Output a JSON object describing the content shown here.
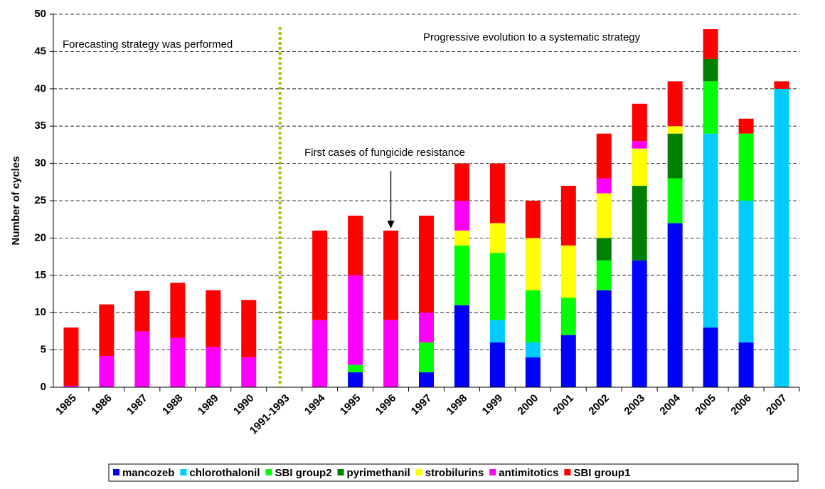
{
  "chart_data": {
    "type": "stacked-bar",
    "y_label": "Number of cycles",
    "categories": [
      "1985",
      "1986",
      "1987",
      "1988",
      "1989",
      "1990",
      "1991-1993",
      "1994",
      "1995",
      "1996",
      "1997",
      "1998",
      "1999",
      "2000",
      "2001",
      "2002",
      "2003",
      "2004",
      "2005",
      "2006",
      "2007"
    ],
    "series": [
      {
        "name": "mancozeb",
        "color": "#0000ff",
        "values": [
          0,
          0,
          0,
          0,
          0,
          0,
          0,
          0,
          2,
          0,
          2,
          11,
          6,
          4,
          7,
          13,
          17,
          22,
          8,
          6,
          0
        ]
      },
      {
        "name": "chlorothalonil",
        "color": "#00ccff",
        "values": [
          0,
          0,
          0,
          0,
          0,
          0,
          0,
          0,
          0,
          0,
          0,
          0,
          3,
          2,
          0,
          0,
          0,
          0,
          26,
          19,
          40
        ]
      },
      {
        "name": "SBI group2",
        "color": "#00ff00",
        "values": [
          0,
          0,
          0,
          0,
          0,
          0,
          0,
          0,
          1,
          0,
          4,
          8,
          9,
          7,
          5,
          4,
          0,
          6,
          7,
          9,
          0
        ]
      },
      {
        "name": "pyrimethanil",
        "color": "#008000",
        "values": [
          0,
          0,
          0,
          0,
          0,
          0,
          0,
          0,
          0,
          0,
          0,
          0,
          0,
          0,
          0,
          3,
          10,
          6,
          3,
          0,
          0
        ]
      },
      {
        "name": "strobilurins",
        "color": "#ffff00",
        "values": [
          0,
          0,
          0,
          0,
          0,
          0,
          0,
          0,
          0,
          0,
          0,
          2,
          4,
          7,
          7,
          6,
          5,
          1,
          0,
          0,
          0
        ]
      },
      {
        "name": "antimitotics",
        "color": "#ff00ff",
        "values": [
          0.2,
          4.2,
          7.5,
          6.6,
          5.4,
          4,
          0,
          9,
          12,
          9,
          4,
          4,
          0,
          0,
          0,
          2,
          1,
          0,
          0,
          0,
          0
        ]
      },
      {
        "name": "SBI group1",
        "color": "#ff0000",
        "values": [
          7.8,
          6.9,
          5.4,
          7.4,
          7.6,
          7.7,
          0,
          12,
          8,
          12,
          13,
          5,
          8,
          5,
          8,
          6,
          5,
          6,
          4,
          2,
          1
        ]
      }
    ],
    "ylim": [
      0,
      50
    ],
    "yticks": [
      0,
      5,
      10,
      15,
      20,
      25,
      30,
      35,
      40,
      45,
      50
    ],
    "grid": true,
    "annotations": [
      "Forecasting strategy was performed",
      "Progressive evolution to a systematic strategy",
      "First cases of fungicide resistance"
    ]
  }
}
